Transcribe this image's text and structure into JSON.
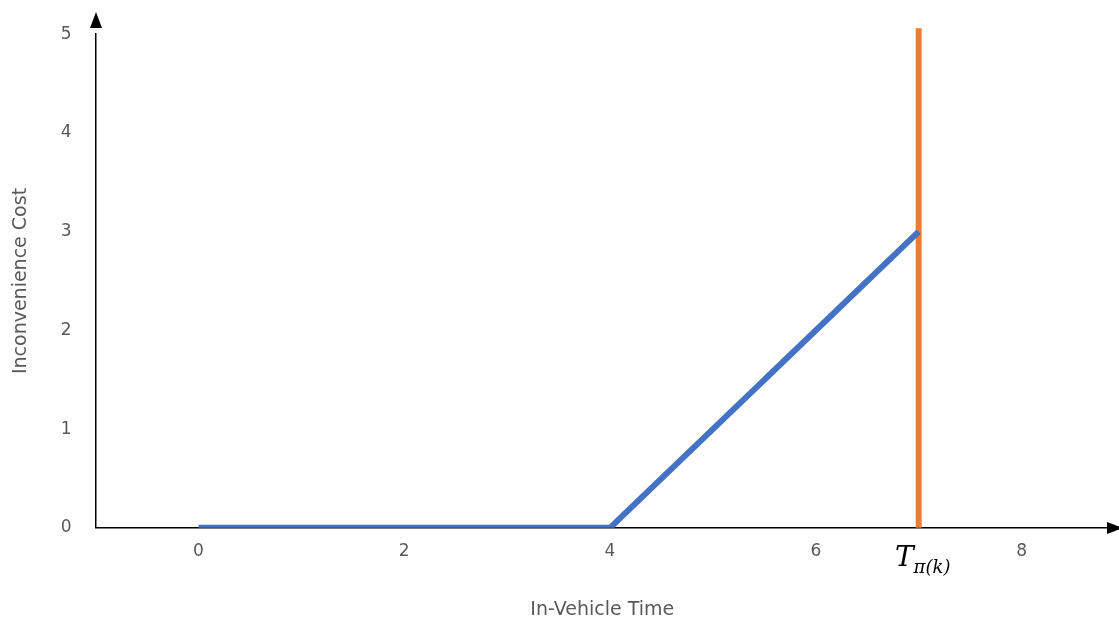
{
  "chart_data": {
    "type": "line",
    "xlabel": "In-Vehicle Time",
    "ylabel": "Inconvenience Cost",
    "x": [
      0,
      4,
      7
    ],
    "values": [
      0,
      0,
      3
    ],
    "color": "#4472c4",
    "xlim": [
      -1,
      8.85
    ],
    "xticks": [
      0,
      2,
      4,
      6,
      8
    ],
    "ylim": [
      0,
      5
    ],
    "yticks": [
      0,
      1,
      2,
      3,
      4,
      5
    ],
    "grid": false,
    "legend": false,
    "marker": "none",
    "line_style": "solid",
    "ref_lines": [
      {
        "axis": "x",
        "value": 7,
        "label": "T$_{π(k)}$",
        "color": "#ed7d31",
        "line_style": "solid"
      }
    ]
  }
}
